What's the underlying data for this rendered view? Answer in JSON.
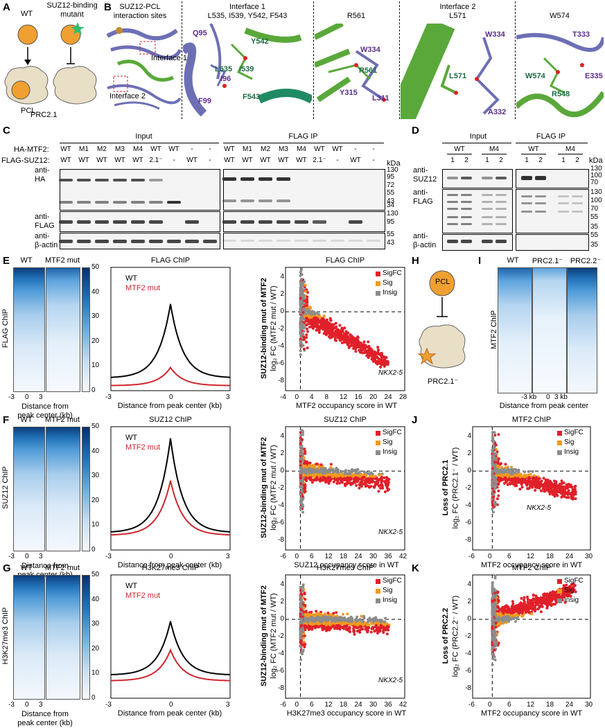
{
  "panels": {
    "A": {
      "letter": "A",
      "wt": "WT",
      "mut_title": "SUZ12-binding\nmutant",
      "pcl": "PCL",
      "prc": "PRC2.1"
    },
    "B": {
      "letter": "B",
      "title": "SUZ12-PCL\ninteraction sites",
      "interface1": "Interface 1",
      "interface2": "Interface 2",
      "sub": [
        "Interface 1\nL535, I539, Y542, F543",
        "R561",
        "Interface 2\nL571",
        "W574"
      ],
      "residues": [
        "Q95",
        "Y542",
        "L535",
        "I539",
        "I96",
        "F99",
        "F543",
        "W334",
        "R561",
        "Y315",
        "L311",
        "W334",
        "L571",
        "A332",
        "T333",
        "W574",
        "E335",
        "R548"
      ]
    },
    "C": {
      "letter": "C",
      "input": "Input",
      "flagip": "FLAG IP",
      "ha_row_label": "HA-MTF2:",
      "flag_row_label": "FLAG-SUZ12:",
      "ha_row": [
        "WT",
        "M1",
        "M2",
        "M3",
        "M4",
        "WT",
        "WT",
        "-",
        "-"
      ],
      "flag_row": [
        "WT",
        "WT",
        "WT",
        "WT",
        "WT",
        "2.1⁻",
        "-",
        "WT",
        "-"
      ],
      "blots": [
        "anti-\nHA",
        "anti-\nFLAG",
        "anti-\nβ-actin"
      ],
      "kda": "kDa",
      "mw_ha": [
        "130",
        "95",
        "72",
        "55",
        "43",
        "34"
      ],
      "mw_flag": [
        "130",
        "95"
      ],
      "mw_actin": [
        "55",
        "43"
      ]
    },
    "D": {
      "letter": "D",
      "input": "Input",
      "flagip": "FLAG IP",
      "groups": [
        "WT",
        "M4",
        "WT",
        "M4"
      ],
      "lanes": [
        "1",
        "2",
        "1",
        "2",
        "1",
        "2",
        "1",
        "2"
      ],
      "blots": [
        "anti-\nSUZ12",
        "anti-\nFLAG",
        "anti-\nβ-actin"
      ],
      "kda": "kDa",
      "mw_suz": [
        "130",
        "100",
        "70"
      ],
      "mw_flag": [
        "130",
        "100",
        "70",
        "55",
        "35"
      ],
      "mw_actin": [
        "55",
        "35"
      ]
    },
    "E": {
      "letter": "E",
      "ylab": "FLAG ChIP",
      "wt": "WT",
      "mut": "MTF2 mut",
      "profile_title": "FLAG ChIP",
      "scatter_title": "FLAG ChIP",
      "scatter_xlab": "MTF2 occupancy score in WT",
      "xticks": [
        "-4",
        "0",
        "4",
        "8",
        "12",
        "16",
        "20",
        "24",
        "28"
      ],
      "yticks": [
        "4",
        "2",
        "0",
        "-2",
        "-4",
        "-6",
        "-8"
      ],
      "gene": "NKX2-5"
    },
    "F": {
      "letter": "F",
      "ylab": "SUZ12 ChIP",
      "wt": "WT",
      "mut": "MTF2 mut",
      "profile_title": "SUZ12 ChIP",
      "scatter_title": "SUZ12 ChIP",
      "scatter_xlab": "SUZ12 occupancy score in WT",
      "xticks": [
        "-6",
        "0",
        "6",
        "12",
        "18",
        "24",
        "30",
        "36",
        "42"
      ],
      "yticks": [
        "4",
        "2",
        "0",
        "-2",
        "-4",
        "-6",
        "-8"
      ],
      "gene": "NKX2-5"
    },
    "G": {
      "letter": "G",
      "ylab": "H3K27me3 ChIP",
      "wt": "WT",
      "mut": "MTF2 mut",
      "profile_title": "H3K27me3 ChIP",
      "scatter_title": "H3K27me3 ChIP",
      "scatter_xlab": "H3K27me3 occupancy score in WT",
      "xticks": [
        "-6",
        "0",
        "6",
        "12",
        "18",
        "24",
        "30",
        "36",
        "42"
      ],
      "yticks": [
        "4",
        "2",
        "0",
        "-2",
        "-4",
        "-6",
        "-8"
      ],
      "gene": "NKX2-5"
    },
    "H": {
      "letter": "H",
      "pcl": "PCL",
      "prc": "PRC2.1⁻"
    },
    "I": {
      "letter": "I",
      "cols": [
        "WT",
        "PRC2.1⁻",
        "PRC2.2⁻"
      ],
      "ylab": "MTF2 ChIP",
      "xticks": [
        "-3 kb",
        "0",
        "3 kb"
      ],
      "xlab": "Distance from peak center",
      "cbar": [
        "50",
        "40",
        "30",
        "20",
        "10",
        "0"
      ]
    },
    "J": {
      "letter": "J",
      "title": "MTF2 ChIP",
      "ylab_bold": "Loss of PRC2.1",
      "ylab": "log₂ FC (PRC2.1⁻ / WT)",
      "xlab": "MTF2 occupancy score in WT",
      "xticks": [
        "-6",
        "0",
        "6",
        "12",
        "18",
        "24",
        "30"
      ],
      "yticks": [
        "4",
        "2",
        "0",
        "-2",
        "-4",
        "-6",
        "-8"
      ],
      "gene": "NKX2-5"
    },
    "K": {
      "letter": "K",
      "title": "MTF2 ChIP",
      "ylab_bold": "Loss of PRC2.2",
      "ylab": "log₂ FC (PRC2.2⁻ / WT)",
      "xlab": "MTF2 occupancy score in WT",
      "xticks": [
        "-6",
        "0",
        "6",
        "12",
        "18",
        "24",
        "30"
      ],
      "yticks": [
        "4",
        "2",
        "0",
        "-2",
        "-4",
        "-6",
        "-8"
      ]
    }
  },
  "common": {
    "heat_xticks": [
      "-3",
      "0",
      "3"
    ],
    "heat_xlab": "Distance from\npeak center (kb)",
    "prof_xticks": [
      "-3",
      "0",
      "3"
    ],
    "prof_xlab": "Distance from peak center (kb)",
    "cbar": [
      "50",
      "40",
      "30",
      "20",
      "10",
      "0"
    ],
    "scatter_ylab_bold": "SUZ12-binding mut of MTF2",
    "scatter_ylab": "log₂ FC (MTF2 mut / WT)",
    "legend": [
      "SigFC",
      "Sig",
      "Insig"
    ],
    "colors": {
      "sigfc": "#e0202a",
      "sig": "#f39a1e",
      "insig": "#8c8c8c",
      "wt_line": "#000000",
      "mut_line": "#d0262e",
      "protein_blue": "#6d6fb5",
      "protein_green": "#5aa83a",
      "pcl": "#f0a030"
    }
  },
  "chart_data": [
    {
      "type": "line",
      "panel": "E",
      "title": "FLAG ChIP",
      "xlabel": "Distance from peak center (kb)",
      "xlim": [
        -3,
        3
      ],
      "series": [
        {
          "name": "WT",
          "x": [
            -3,
            -2,
            -1,
            -0.5,
            0,
            0.5,
            1,
            2,
            3
          ],
          "y": [
            3.3,
            4.5,
            7.5,
            12,
            22.5,
            12,
            7.5,
            4.5,
            3.3
          ]
        },
        {
          "name": "MTF2 mut",
          "x": [
            -3,
            -2,
            -1,
            -0.5,
            0,
            0.5,
            1,
            2,
            3
          ],
          "y": [
            1.3,
            1.8,
            2.6,
            3.8,
            6,
            3.8,
            2.6,
            1.8,
            1.3
          ]
        }
      ]
    },
    {
      "type": "line",
      "panel": "F",
      "title": "SUZ12 ChIP",
      "xlabel": "Distance from peak center (kb)",
      "xlim": [
        -3,
        3
      ],
      "series": [
        {
          "name": "WT",
          "x": [
            -3,
            -2,
            -1,
            -0.5,
            0,
            0.5,
            1,
            2,
            3
          ],
          "y": [
            4.5,
            6,
            10,
            16,
            29,
            16,
            10,
            6,
            4.5
          ]
        },
        {
          "name": "MTF2 mut",
          "x": [
            -3,
            -2,
            -1,
            -0.5,
            0,
            0.5,
            1,
            2,
            3
          ],
          "y": [
            3.8,
            5,
            7.5,
            11,
            18,
            11,
            7.5,
            5,
            3.8
          ]
        }
      ]
    },
    {
      "type": "line",
      "panel": "G",
      "title": "H3K27me3 ChIP",
      "xlabel": "Distance from peak center (kb)",
      "xlim": [
        -3,
        3
      ],
      "series": [
        {
          "name": "WT",
          "x": [
            -3,
            -2,
            -1,
            -0.5,
            0,
            0.5,
            1,
            2,
            3
          ],
          "y": [
            6,
            7.5,
            10.5,
            14,
            20,
            14,
            10.5,
            7.5,
            6
          ]
        },
        {
          "name": "MTF2 mut",
          "x": [
            -3,
            -2,
            -1,
            -0.5,
            0,
            0.5,
            1,
            2,
            3
          ],
          "y": [
            4.5,
            5.5,
            7.3,
            9.5,
            12.5,
            9.5,
            7.3,
            5.5,
            4.5
          ]
        }
      ]
    },
    {
      "type": "scatter",
      "panel": "E",
      "title": "FLAG ChIP",
      "xlim": [
        -4,
        28
      ],
      "ylim": [
        -8,
        4.5
      ],
      "trend": "down",
      "trend_slope": -0.22
    },
    {
      "type": "scatter",
      "panel": "F",
      "title": "SUZ12 ChIP",
      "xlim": [
        -6,
        42
      ],
      "ylim": [
        -8,
        4.5
      ],
      "trend": "flat",
      "trend_slope": -0.03
    },
    {
      "type": "scatter",
      "panel": "G",
      "title": "H3K27me3 ChIP",
      "xlim": [
        -6,
        42
      ],
      "ylim": [
        -8,
        4.5
      ],
      "trend": "flat",
      "trend_slope": -0.02
    },
    {
      "type": "scatter",
      "panel": "J",
      "title": "MTF2 ChIP",
      "xlim": [
        -6,
        30
      ],
      "ylim": [
        -8,
        4.5
      ],
      "trend": "down",
      "trend_slope": -0.09
    },
    {
      "type": "scatter",
      "panel": "K",
      "title": "MTF2 ChIP",
      "xlim": [
        -6,
        30
      ],
      "ylim": [
        -8,
        4.5
      ],
      "trend": "up",
      "trend_slope": 0.12
    }
  ]
}
